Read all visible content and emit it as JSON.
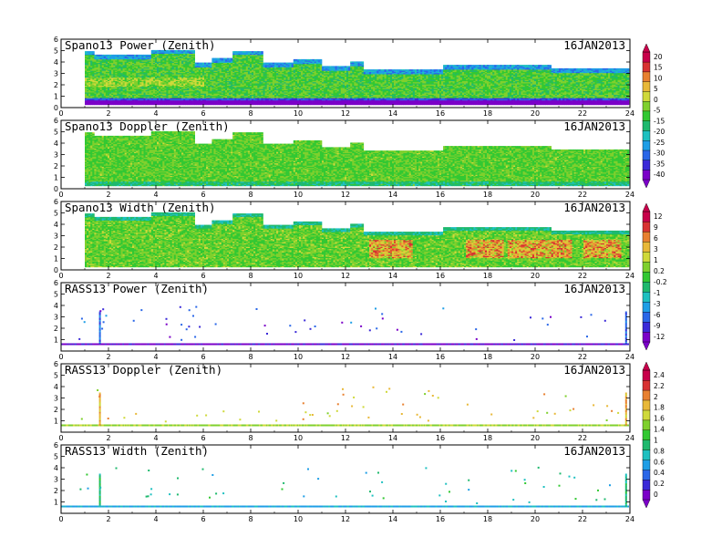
{
  "chart_data": {
    "type": "heatmap",
    "x_ticks": [
      0,
      2,
      4,
      6,
      8,
      10,
      12,
      14,
      16,
      18,
      20,
      22,
      24
    ],
    "xlim": [
      0,
      24
    ],
    "y_ticks_spano": [
      0,
      1,
      2,
      3,
      4,
      5,
      6
    ],
    "y_ticks_rass": [
      1,
      2,
      3,
      4,
      5,
      6
    ],
    "ylim": [
      0,
      6
    ],
    "panels": [
      {
        "title": "Spano13 Power (Zenith)",
        "date": "16JAN2013",
        "kind": "spano",
        "variable": "power",
        "colorbar": 0
      },
      {
        "title": "Spano13 Doppler (Zenith)",
        "date": "16JAN2013",
        "kind": "spano",
        "variable": "doppler",
        "colorbar": 0
      },
      {
        "title": "Spano13 Width (Zenith)",
        "date": "16JAN2013",
        "kind": "spano",
        "variable": "width",
        "colorbar": 1
      },
      {
        "title": "RASS13 Power (Zenith)",
        "date": "16JAN2013",
        "kind": "rass",
        "variable": "power",
        "colorbar": 1
      },
      {
        "title": "RASS13 Doppler (Zenith)",
        "date": "16JAN2013",
        "kind": "rass",
        "variable": "doppler",
        "colorbar": 2
      },
      {
        "title": "RASS13 Width (Zenith)",
        "date": "16JAN2013",
        "kind": "rass",
        "variable": "width",
        "colorbar": 2
      }
    ],
    "colorbars": [
      {
        "labels": [
          "20",
          "15",
          "10",
          "5",
          "0",
          "-5",
          "-15",
          "-20",
          "-25",
          "-30",
          "-35",
          "-40"
        ]
      },
      {
        "labels": [
          "12",
          "9",
          "6",
          "3",
          "1",
          "0.2",
          "-0.2",
          "-1",
          "-3",
          "-6",
          "-9",
          "-12"
        ]
      },
      {
        "labels": [
          "2.4",
          "2.2",
          "2",
          "1.8",
          "1.6",
          "1.4",
          "1",
          "0.8",
          "0.6",
          "0.4",
          "0.2",
          "0"
        ]
      }
    ],
    "colormap": [
      "#7b00c8",
      "#3b2ad8",
      "#2a67e8",
      "#1e9ee6",
      "#1ec0c0",
      "#1fb96e",
      "#32c832",
      "#7fd02d",
      "#cfd93a",
      "#e8b838",
      "#e88030",
      "#d83232",
      "#c8004a"
    ],
    "spano_echo_tops_km": [
      {
        "x": [
          0,
          1
        ],
        "top": 0
      },
      {
        "x": [
          1,
          1.4
        ],
        "top": 4.9
      },
      {
        "x": [
          1.4,
          3.8
        ],
        "top": 4.6
      },
      {
        "x": [
          3.8,
          5.6
        ],
        "top": 5.0
      },
      {
        "x": [
          5.6,
          6.3
        ],
        "top": 3.9
      },
      {
        "x": [
          6.3,
          7.2
        ],
        "top": 4.3
      },
      {
        "x": [
          7.2,
          8.5
        ],
        "top": 4.9
      },
      {
        "x": [
          8.5,
          9.8
        ],
        "top": 3.9
      },
      {
        "x": [
          9.8,
          11.0
        ],
        "top": 4.2
      },
      {
        "x": [
          11.0,
          12.2
        ],
        "top": 3.6
      },
      {
        "x": [
          12.2,
          12.7
        ],
        "top": 4.0
      },
      {
        "x": [
          12.7,
          16.1
        ],
        "top": 3.3
      },
      {
        "x": [
          16.1,
          20.6
        ],
        "top": 3.7
      },
      {
        "x": [
          20.6,
          23.9
        ],
        "top": 3.4
      }
    ],
    "rass_baseline_height_km": 0.6
  }
}
